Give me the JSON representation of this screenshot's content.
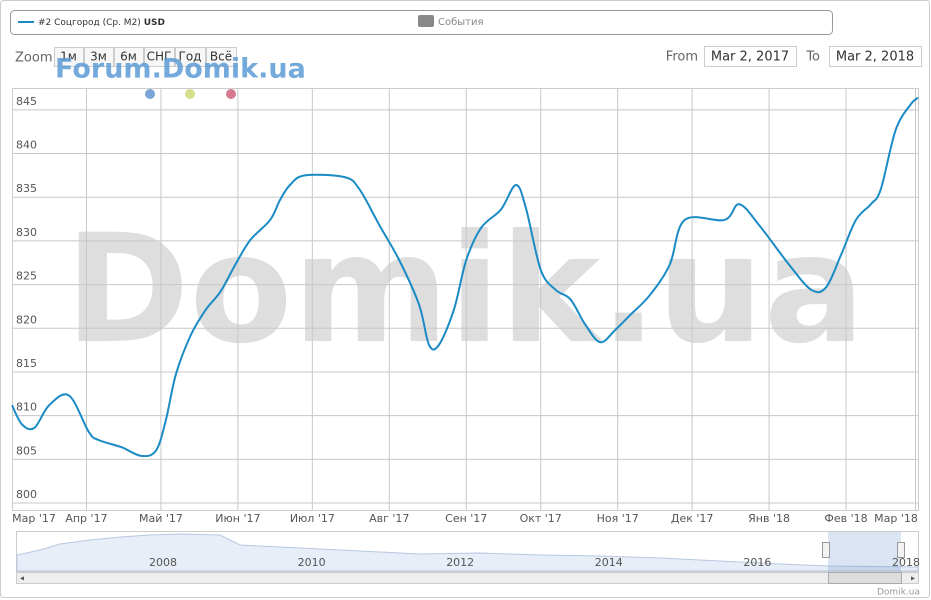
{
  "chart_data": {
    "type": "line",
    "legend": {
      "series_name": "#2 Соцгород (Ср. M2)",
      "currency": "USD",
      "events": "События"
    },
    "range_selector": {
      "zoom_label": "Zoom",
      "buttons": [
        "1м",
        "3м",
        "6м",
        "СНГ",
        "Год",
        "Всё"
      ],
      "from_label": "From",
      "to_label": "To",
      "from": "Mar 2, 2017",
      "to": "Mar 2, 2018"
    },
    "watermark": "Forum.Domik.ua",
    "background_text": "Domik.ua",
    "credits": "Domik.ua",
    "navigator_years": [
      "2008",
      "2010",
      "2012",
      "2014",
      "2016",
      "2018"
    ],
    "xlim": [
      "2017-03-02",
      "2018-03-02"
    ],
    "xticks": [
      {
        "value": "2017-03-01",
        "label": "Мар '17"
      },
      {
        "value": "2017-04-01",
        "label": "Апр '17"
      },
      {
        "value": "2017-05-01",
        "label": "Май '17"
      },
      {
        "value": "2017-06-01",
        "label": "Июн '17"
      },
      {
        "value": "2017-07-01",
        "label": "Июл '17"
      },
      {
        "value": "2017-08-01",
        "label": "Авг '17"
      },
      {
        "value": "2017-09-01",
        "label": "Сен '17"
      },
      {
        "value": "2017-10-01",
        "label": "Окт '17"
      },
      {
        "value": "2017-11-01",
        "label": "Ноя '17"
      },
      {
        "value": "2017-12-01",
        "label": "Дек '17"
      },
      {
        "value": "2018-01-01",
        "label": "Янв '18"
      },
      {
        "value": "2018-02-01",
        "label": "Фев '18"
      },
      {
        "value": "2018-03-01",
        "label": "Мар '18"
      }
    ],
    "ylim": [
      799.2,
      847.5
    ],
    "yticks": [
      800,
      805,
      810,
      815,
      820,
      825,
      830,
      835,
      840,
      845
    ],
    "grid": true,
    "series": [
      {
        "name": "#2 Соцгород (Ср. M2)",
        "color": "#1a8bc4",
        "x": [
          "2017-03-02",
          "2017-03-06",
          "2017-03-11",
          "2017-03-17",
          "2017-03-25",
          "2017-04-02",
          "2017-04-06",
          "2017-04-15",
          "2017-04-23",
          "2017-04-29",
          "2017-05-03",
          "2017-05-07",
          "2017-05-13",
          "2017-05-19",
          "2017-05-25",
          "2017-05-31",
          "2017-06-06",
          "2017-06-14",
          "2017-06-18",
          "2017-06-22",
          "2017-06-28",
          "2017-07-14",
          "2017-07-20",
          "2017-07-28",
          "2017-08-05",
          "2017-08-13",
          "2017-08-17",
          "2017-08-21",
          "2017-08-27",
          "2017-09-01",
          "2017-09-07",
          "2017-09-15",
          "2017-09-21",
          "2017-09-25",
          "2017-10-01",
          "2017-10-07",
          "2017-10-13",
          "2017-10-19",
          "2017-10-25",
          "2017-10-31",
          "2017-11-06",
          "2017-11-14",
          "2017-11-22",
          "2017-11-28",
          "2017-12-14",
          "2017-12-20",
          "2017-12-28",
          "2018-01-09",
          "2018-01-18",
          "2018-01-24",
          "2018-01-30",
          "2018-02-05",
          "2018-02-11",
          "2018-02-15",
          "2018-02-21",
          "2018-02-27",
          "2018-03-02"
        ],
        "values": [
          811.2,
          809,
          808.6,
          811.2,
          812.3,
          808.1,
          807.2,
          806.4,
          805.4,
          806,
          809.5,
          814.7,
          819.2,
          822.1,
          824.2,
          827.3,
          830.1,
          832.4,
          834.7,
          836.4,
          837.5,
          837.3,
          835.9,
          831.8,
          827.8,
          822.7,
          818.1,
          818.1,
          822.1,
          827.8,
          831.5,
          833.6,
          836.4,
          833.8,
          826.7,
          824.4,
          823.3,
          820.4,
          818.4,
          819.8,
          821.5,
          823.8,
          827.3,
          832.4,
          832.4,
          834.2,
          831.8,
          827.3,
          824.4,
          824.7,
          828.4,
          832.4,
          834.2,
          835.9,
          842.7,
          845.6,
          846.4
        ]
      }
    ]
  }
}
